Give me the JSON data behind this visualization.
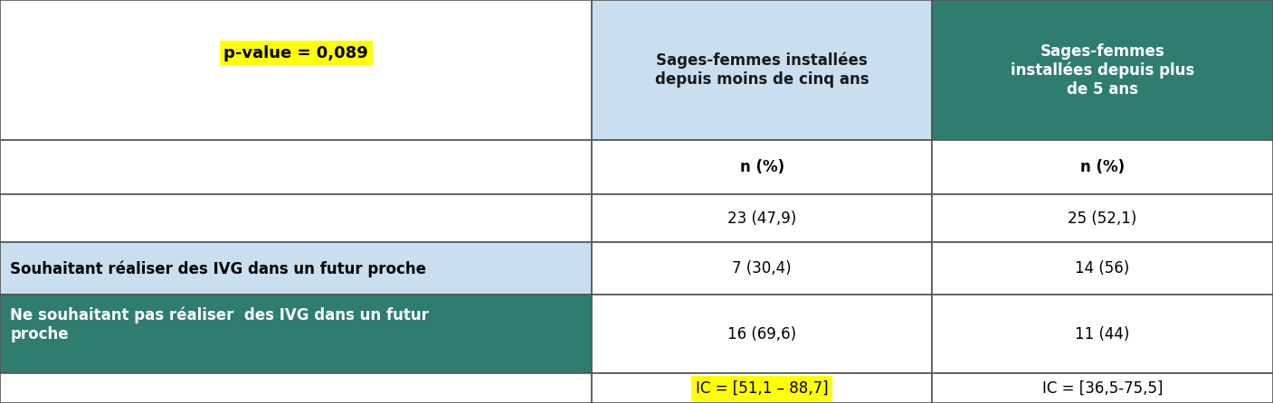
{
  "col1_header": "Sages-femmes installées\ndepuis moins de cinq ans",
  "col2_header": "Sages-femmes\ninstallées depuis plus\nde 5 ans",
  "subheader": "n (%)",
  "row0": [
    "23 (47,9)",
    "25 (52,1)"
  ],
  "row1_label": "Souhaitant réaliser des IVG dans un futur proche",
  "row1": [
    "7 (30,4)",
    "14 (56)"
  ],
  "row2_label": "Ne souhaitant pas réaliser  des IVG dans un futur\nproche",
  "row2": [
    "16 (69,6)",
    "11 (44)"
  ],
  "row3": [
    "IC = [51,1 – 88,7]",
    "IC = [36,5-75,5]"
  ],
  "pvalue": "p-value = 0,089",
  "col_header1_bg": "#c9dff0",
  "col_header2_bg": "#2e7d6e",
  "row1_bg": "#c9dff0",
  "row2_bg": "#2e7d6e",
  "border_color": "#555555",
  "font_size": 12,
  "header_font_size": 12
}
